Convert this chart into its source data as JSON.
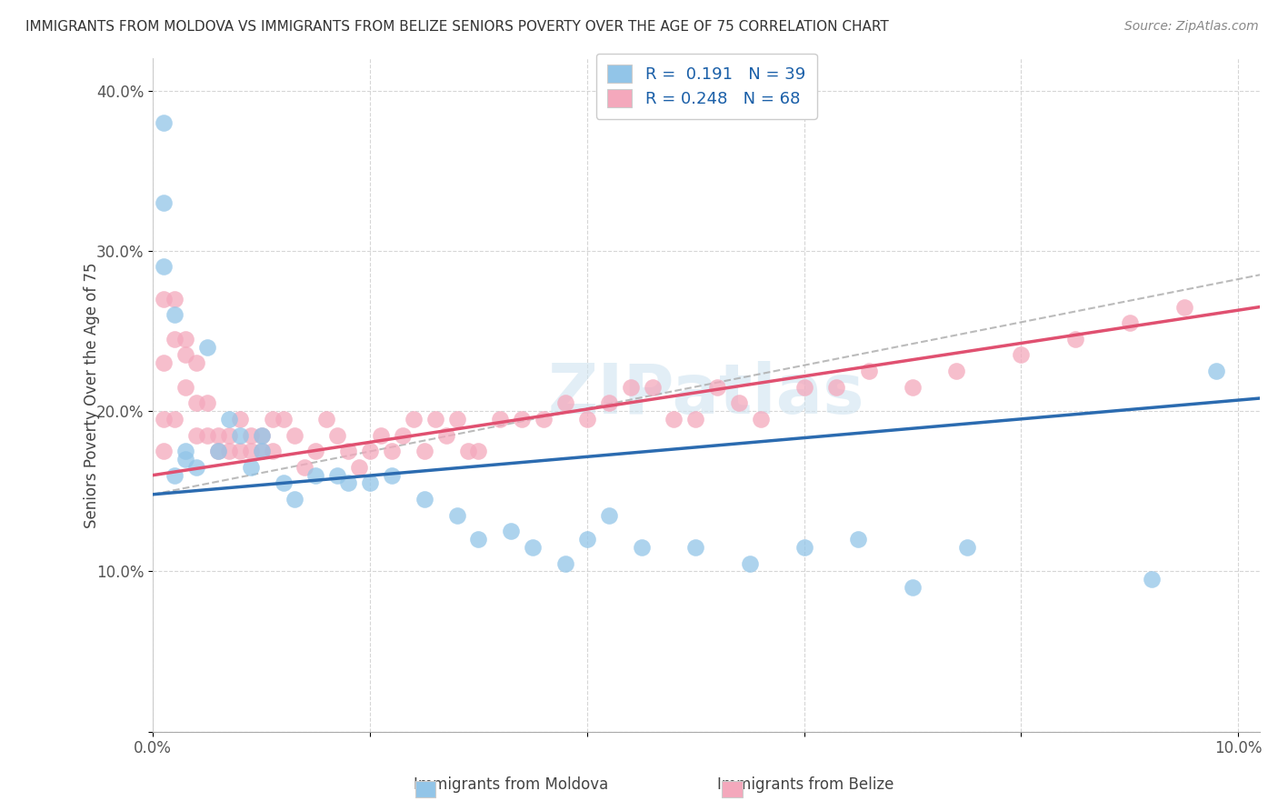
{
  "title": "IMMIGRANTS FROM MOLDOVA VS IMMIGRANTS FROM BELIZE SENIORS POVERTY OVER THE AGE OF 75 CORRELATION CHART",
  "source": "Source: ZipAtlas.com",
  "ylabel": "Seniors Poverty Over the Age of 75",
  "xlim": [
    0.0,
    0.102
  ],
  "ylim": [
    0.0,
    0.42
  ],
  "xticks": [
    0.0,
    0.02,
    0.04,
    0.06,
    0.08,
    0.1
  ],
  "xtick_labels": [
    "0.0%",
    "",
    "",
    "",
    "",
    "10.0%"
  ],
  "yticks": [
    0.0,
    0.1,
    0.2,
    0.3,
    0.4
  ],
  "ytick_labels_right": [
    "",
    "10.0%",
    "20.0%",
    "30.0%",
    "40.0%"
  ],
  "moldova_color": "#92C5E8",
  "belize_color": "#F4A8BC",
  "moldova_line_color": "#2B6BB0",
  "belize_line_color": "#E05070",
  "R_moldova": 0.191,
  "N_moldova": 39,
  "R_belize": 0.248,
  "N_belize": 68,
  "watermark": "ZIPatlas",
  "moldova_scatter_x": [
    0.001,
    0.001,
    0.001,
    0.002,
    0.002,
    0.003,
    0.003,
    0.004,
    0.005,
    0.006,
    0.007,
    0.008,
    0.009,
    0.01,
    0.01,
    0.012,
    0.013,
    0.015,
    0.017,
    0.018,
    0.02,
    0.022,
    0.025,
    0.028,
    0.03,
    0.033,
    0.035,
    0.038,
    0.04,
    0.042,
    0.045,
    0.05,
    0.055,
    0.06,
    0.065,
    0.07,
    0.075,
    0.092,
    0.098
  ],
  "moldova_scatter_y": [
    0.38,
    0.33,
    0.29,
    0.16,
    0.26,
    0.17,
    0.175,
    0.165,
    0.24,
    0.175,
    0.195,
    0.185,
    0.165,
    0.175,
    0.185,
    0.155,
    0.145,
    0.16,
    0.16,
    0.155,
    0.155,
    0.16,
    0.145,
    0.135,
    0.12,
    0.125,
    0.115,
    0.105,
    0.12,
    0.135,
    0.115,
    0.115,
    0.105,
    0.115,
    0.12,
    0.09,
    0.115,
    0.095,
    0.225
  ],
  "belize_scatter_x": [
    0.001,
    0.001,
    0.001,
    0.001,
    0.002,
    0.002,
    0.002,
    0.003,
    0.003,
    0.003,
    0.004,
    0.004,
    0.004,
    0.005,
    0.005,
    0.006,
    0.006,
    0.007,
    0.007,
    0.008,
    0.008,
    0.009,
    0.009,
    0.01,
    0.01,
    0.011,
    0.011,
    0.012,
    0.013,
    0.014,
    0.015,
    0.016,
    0.017,
    0.018,
    0.019,
    0.02,
    0.021,
    0.022,
    0.023,
    0.024,
    0.025,
    0.026,
    0.027,
    0.028,
    0.029,
    0.03,
    0.032,
    0.034,
    0.036,
    0.038,
    0.04,
    0.042,
    0.044,
    0.046,
    0.048,
    0.05,
    0.052,
    0.054,
    0.056,
    0.06,
    0.063,
    0.066,
    0.07,
    0.074,
    0.08,
    0.085,
    0.09,
    0.095
  ],
  "belize_scatter_y": [
    0.27,
    0.23,
    0.195,
    0.175,
    0.27,
    0.245,
    0.195,
    0.245,
    0.235,
    0.215,
    0.23,
    0.205,
    0.185,
    0.205,
    0.185,
    0.185,
    0.175,
    0.185,
    0.175,
    0.195,
    0.175,
    0.185,
    0.175,
    0.185,
    0.175,
    0.195,
    0.175,
    0.195,
    0.185,
    0.165,
    0.175,
    0.195,
    0.185,
    0.175,
    0.165,
    0.175,
    0.185,
    0.175,
    0.185,
    0.195,
    0.175,
    0.195,
    0.185,
    0.195,
    0.175,
    0.175,
    0.195,
    0.195,
    0.195,
    0.205,
    0.195,
    0.205,
    0.215,
    0.215,
    0.195,
    0.195,
    0.215,
    0.205,
    0.195,
    0.215,
    0.215,
    0.225,
    0.215,
    0.225,
    0.235,
    0.245,
    0.255,
    0.265
  ],
  "moldova_line_x0": 0.0,
  "moldova_line_y0": 0.148,
  "moldova_line_x1": 0.102,
  "moldova_line_y1": 0.208,
  "belize_line_x0": 0.0,
  "belize_line_y0": 0.16,
  "belize_line_x1": 0.102,
  "belize_line_y1": 0.265,
  "dash_line_x0": 0.0,
  "dash_line_y0": 0.148,
  "dash_line_x1": 0.102,
  "dash_line_y1": 0.285
}
